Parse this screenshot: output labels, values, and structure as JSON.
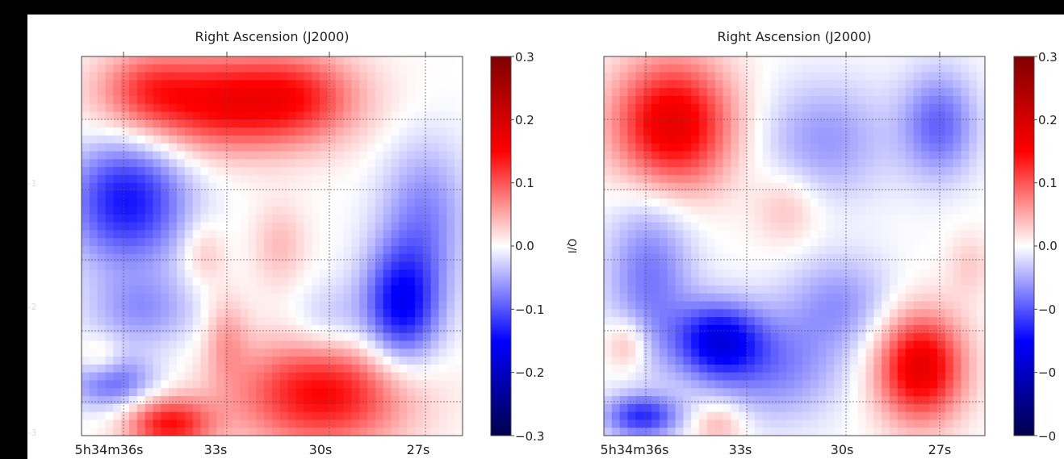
{
  "chart_data": [
    {
      "type": "heatmap",
      "xlabel": "Right Ascension (J2000)",
      "x_ticks": [
        "5h34m36s",
        "33s",
        "30s",
        "27s"
      ],
      "y_ticks_left": [
        "-1",
        "-2",
        "-3"
      ],
      "colorbar": {
        "label": "Q/I",
        "ticks": [
          "0.3",
          "0.2",
          "0.1",
          "0.0",
          "−0.1",
          "−0.2",
          "−0.3"
        ],
        "range": [
          -0.3,
          0.3
        ],
        "colormap": "seismic"
      },
      "blobs": [
        {
          "u": 0.38,
          "v": 0.12,
          "value": 0.16,
          "su": 0.2,
          "sv": 0.09
        },
        {
          "u": 0.17,
          "v": 0.08,
          "value": 0.05,
          "su": 0.08,
          "sv": 0.07
        },
        {
          "u": 0.58,
          "v": 0.1,
          "value": 0.05,
          "su": 0.1,
          "sv": 0.08
        },
        {
          "u": 0.12,
          "v": 0.38,
          "value": -0.14,
          "su": 0.11,
          "sv": 0.12
        },
        {
          "u": 0.16,
          "v": 0.67,
          "value": -0.06,
          "su": 0.1,
          "sv": 0.07
        },
        {
          "u": 0.84,
          "v": 0.66,
          "value": -0.15,
          "su": 0.07,
          "sv": 0.11
        },
        {
          "u": 0.9,
          "v": 0.42,
          "value": -0.07,
          "su": 0.08,
          "sv": 0.14
        },
        {
          "u": 0.08,
          "v": 0.86,
          "value": -0.09,
          "su": 0.08,
          "sv": 0.05
        },
        {
          "u": 0.63,
          "v": 0.89,
          "value": 0.15,
          "su": 0.16,
          "sv": 0.1
        },
        {
          "u": 0.23,
          "v": 0.97,
          "value": 0.14,
          "su": 0.08,
          "sv": 0.05
        },
        {
          "u": 0.32,
          "v": 0.52,
          "value": 0.04,
          "su": 0.04,
          "sv": 0.06
        },
        {
          "u": 0.52,
          "v": 0.5,
          "value": 0.04,
          "su": 0.05,
          "sv": 0.08
        },
        {
          "u": 0.38,
          "v": 0.74,
          "value": 0.05,
          "su": 0.04,
          "sv": 0.08
        },
        {
          "u": 0.65,
          "v": 0.7,
          "value": -0.04,
          "su": 0.07,
          "sv": 0.07
        },
        {
          "u": 0.05,
          "v": 0.8,
          "value": 0.04,
          "su": 0.04,
          "sv": 0.04
        }
      ]
    },
    {
      "type": "heatmap",
      "xlabel": "Right Ascension (J2000)",
      "x_ticks": [
        "5h34m36s",
        "33s",
        "30s",
        "27s"
      ],
      "colorbar": {
        "label": "",
        "ticks": [
          "0.3",
          "0.2",
          "0.1",
          "0.0",
          "−0",
          "−0",
          "−0"
        ],
        "range": [
          -0.3,
          0.3
        ],
        "colormap": "seismic"
      },
      "blobs": [
        {
          "u": 0.18,
          "v": 0.18,
          "value": 0.18,
          "su": 0.11,
          "sv": 0.12
        },
        {
          "u": 0.83,
          "v": 0.82,
          "value": 0.18,
          "su": 0.08,
          "sv": 0.1
        },
        {
          "u": 0.58,
          "v": 0.22,
          "value": -0.06,
          "su": 0.12,
          "sv": 0.11
        },
        {
          "u": 0.88,
          "v": 0.18,
          "value": -0.09,
          "su": 0.07,
          "sv": 0.1
        },
        {
          "u": 0.12,
          "v": 0.58,
          "value": -0.08,
          "su": 0.08,
          "sv": 0.16
        },
        {
          "u": 0.3,
          "v": 0.75,
          "value": -0.15,
          "su": 0.08,
          "sv": 0.07
        },
        {
          "u": 0.1,
          "v": 0.95,
          "value": -0.12,
          "su": 0.07,
          "sv": 0.04
        },
        {
          "u": 0.45,
          "v": 0.82,
          "value": -0.07,
          "su": 0.12,
          "sv": 0.1
        },
        {
          "u": 0.62,
          "v": 0.65,
          "value": -0.06,
          "su": 0.1,
          "sv": 0.09
        },
        {
          "u": 0.06,
          "v": 0.76,
          "value": 0.06,
          "su": 0.04,
          "sv": 0.05
        },
        {
          "u": 0.48,
          "v": 0.4,
          "value": 0.04,
          "su": 0.06,
          "sv": 0.07
        },
        {
          "u": 0.3,
          "v": 0.97,
          "value": 0.05,
          "su": 0.05,
          "sv": 0.04
        },
        {
          "u": 0.96,
          "v": 0.55,
          "value": 0.03,
          "su": 0.04,
          "sv": 0.06
        }
      ]
    }
  ]
}
